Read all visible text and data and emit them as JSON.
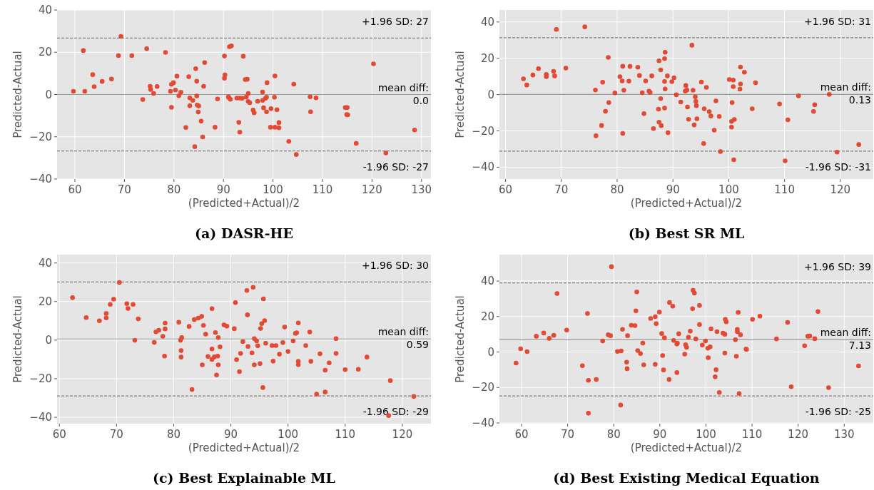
{
  "chart_data": [
    {
      "type": "scatter",
      "title": "(a) DASR-HE",
      "xlabel": "(Predicted+Actual)/2",
      "ylabel": "Predicted-Actual",
      "xlim": [
        56.4,
        131.9
      ],
      "ylim": [
        -40,
        40
      ],
      "xticks": [
        60,
        70,
        80,
        90,
        100,
        110,
        120,
        130
      ],
      "yticks": [
        -40,
        -20,
        0,
        20,
        40
      ],
      "grid": true,
      "marker": "circle",
      "color": "#e24a33",
      "x": [
        59.7,
        61.7,
        62.0,
        63.6,
        63.9,
        65.5,
        67.4,
        68.8,
        69.3,
        71.5,
        73.7,
        74.5,
        75.2,
        75.3,
        75.9,
        76.6,
        78.3,
        79.3,
        79.5,
        79.5,
        79.9,
        80.3,
        80.6,
        81.0,
        81.4,
        82.4,
        83.0,
        83.2,
        83.2,
        83.8,
        84.4,
        84.6,
        84.6,
        84.7,
        85.0,
        84.9,
        85.5,
        85.8,
        86.0,
        84.2,
        86.2,
        88.3,
        88.8,
        90.2,
        90.2,
        90.3,
        91.0,
        91.2,
        91.6,
        91.1,
        91.4,
        92.7,
        93.1,
        93.3,
        93.3,
        93.8,
        94.0,
        94.4,
        94.8,
        94.6,
        95.0,
        95.0,
        95.3,
        96.0,
        96.2,
        96.9,
        97.9,
        97.9,
        98.1,
        98.5,
        98.7,
        98.7,
        98.8,
        99.6,
        99.5,
        100.3,
        100.4,
        100.4,
        100.8,
        101.2,
        101.2,
        103.2,
        104.2,
        104.7,
        107.5,
        107.6,
        108.7,
        114.6,
        115.0,
        114.9,
        115.1,
        116.8,
        120.3,
        122.8,
        128.6
      ],
      "values": [
        1.5,
        20.8,
        1.5,
        9.4,
        3.7,
        6.2,
        7.3,
        18.4,
        27.5,
        18.4,
        -2.4,
        21.7,
        3.9,
        2.4,
        0.5,
        3.8,
        19.9,
        1.5,
        4.8,
        -6.1,
        5.6,
        2.1,
        8.7,
        -0.6,
        1.1,
        -15.6,
        8.4,
        -1.6,
        -5.3,
        -2.8,
        12.2,
        -0.7,
        6.3,
        -5.0,
        -5.4,
        -8.3,
        -12.6,
        -20.1,
        3.9,
        -24.7,
        15.1,
        -15.5,
        -2.1,
        18.2,
        7.7,
        9.3,
        -1.1,
        22.6,
        23.0,
        -1.5,
        -2.3,
        -1.7,
        -13.2,
        -1.7,
        -17.8,
        -1.8,
        18.1,
        7.1,
        7.2,
        -1.2,
        0.5,
        -3.3,
        -3.9,
        -7.4,
        -8.7,
        -3.2,
        1.2,
        -2.8,
        -6.3,
        -1.8,
        -1.3,
        -8.2,
        5.6,
        -6.7,
        -15.5,
        -1.3,
        8.8,
        -15.5,
        -7.2,
        -13.3,
        -15.8,
        -22.2,
        4.9,
        -28.4,
        -1.1,
        -8.2,
        -1.6,
        -6.2,
        -6.2,
        -9.5,
        -9.6,
        -23.1,
        14.5,
        -27.7,
        -16.8
      ],
      "ref_lines": [
        {
          "axis": "y",
          "value": 26.7,
          "label": "+1.96 SD: 27",
          "color": "#808080",
          "line_style": "dashed"
        },
        {
          "axis": "y",
          "value": 0.0,
          "label": "mean diff:\n0.0",
          "color": "#999999",
          "line_style": "solid"
        },
        {
          "axis": "y",
          "value": -26.7,
          "label": "-1.96 SD: -27",
          "color": "#808080",
          "line_style": "dashed"
        }
      ]
    },
    {
      "type": "scatter",
      "title": "(b) Best SR ML",
      "xlabel": "(Predicted+Actual)/2",
      "ylabel": "Predicted-Actual",
      "xlim": [
        58.9,
        125.9
      ],
      "ylim": [
        -46.5,
        46.6
      ],
      "xticks": [
        60,
        70,
        80,
        90,
        100,
        110,
        120
      ],
      "yticks": [
        -40,
        -20,
        0,
        20,
        40
      ],
      "grid": true,
      "marker": "circle",
      "color": "#e24a33",
      "x": [
        63.2,
        63.8,
        64.9,
        65.9,
        67.3,
        67.3,
        68.6,
        68.8,
        69.1,
        70.8,
        74.2,
        76.1,
        76.2,
        77.2,
        77.4,
        77.9,
        78.4,
        78.5,
        79.6,
        80.5,
        80.9,
        81.0,
        81.0,
        81.2,
        82.1,
        82.3,
        83.7,
        84.0,
        84.5,
        84.8,
        85.1,
        85.7,
        85.9,
        86.2,
        86.5,
        87.4,
        87.5,
        87.5,
        87.8,
        87.8,
        87.9,
        88.5,
        88.6,
        88.5,
        88.5,
        88.6,
        89.0,
        89.1,
        89.8,
        90.2,
        90.6,
        91.4,
        92.2,
        92.3,
        92.5,
        92.6,
        92.8,
        93.4,
        93.6,
        93.8,
        94.0,
        94.1,
        94.2,
        94.3,
        95.1,
        95.6,
        95.5,
        96.0,
        96.5,
        96.8,
        97.4,
        97.7,
        98.3,
        98.5,
        100.1,
        100.5,
        100.5,
        100.6,
        100.8,
        100.8,
        101.0,
        100.9,
        102.0,
        102.1,
        102.1,
        102.8,
        104.2,
        104.8,
        109.1,
        110.1,
        110.6,
        112.5,
        115.2,
        115.4,
        118.0,
        119.4,
        123.3
      ],
      "values": [
        8.7,
        5.3,
        10.8,
        14.3,
        11.1,
        9.9,
        12.8,
        10.3,
        35.9,
        14.6,
        37.3,
        2.5,
        -22.7,
        -17.0,
        6.8,
        -9.2,
        20.5,
        -4.4,
        0.9,
        9.9,
        7.5,
        15.6,
        -21.4,
        2.4,
        7.4,
        15.5,
        15.1,
        10.5,
        1.0,
        -10.5,
        7.5,
        1.9,
        1.2,
        10.3,
        -18.7,
        -8.0,
        -15.2,
        18.6,
        -2.2,
        13.6,
        -17.1,
        19.8,
        23.3,
        -7.4,
        7.2,
        3.1,
        10.3,
        -21.0,
        7.1,
        9.3,
        -0.1,
        -4.1,
        1.9,
        5.0,
        2.5,
        -6.8,
        -13.6,
        27.2,
        2.4,
        -16.7,
        -1.2,
        -3.7,
        -6.1,
        -13.3,
        6.9,
        -7.8,
        -27.0,
        4.0,
        -9.4,
        -11.8,
        -19.6,
        -3.5,
        -12.0,
        -31.4,
        8.3,
        -14.8,
        -17.9,
        -4.4,
        8.0,
        4.4,
        -13.7,
        -35.9,
        3.0,
        5.8,
        15.2,
        12.3,
        -7.8,
        6.5,
        -5.2,
        -36.5,
        -13.9,
        -0.7,
        -9.3,
        -5.6,
        0.1,
        -31.7,
        -27.5
      ],
      "ref_lines": [
        {
          "axis": "y",
          "value": 31.3,
          "label": "+1.96 SD: 31",
          "color": "#808080",
          "line_style": "dashed"
        },
        {
          "axis": "y",
          "value": 0.13,
          "label": "mean diff:\n0.13",
          "color": "#999999",
          "line_style": "solid"
        },
        {
          "axis": "y",
          "value": -31.1,
          "label": "-1.96 SD: -31",
          "color": "#808080",
          "line_style": "dashed"
        }
      ]
    },
    {
      "type": "scatter",
      "title": "(c) Best Explainable ML",
      "xlabel": "(Predicted+Actual)/2",
      "ylabel": "Predicted-Actual",
      "xlim": [
        59.6,
        125.0
      ],
      "ylim": [
        -43.3,
        44.3
      ],
      "xticks": [
        60,
        70,
        80,
        90,
        100,
        110,
        120
      ],
      "yticks": [
        -40,
        -20,
        0,
        20,
        40
      ],
      "grid": true,
      "marker": "circle",
      "color": "#e24a33",
      "x": [
        62.3,
        64.7,
        67.0,
        68.2,
        68.2,
        68.9,
        69.5,
        70.5,
        71.8,
        72.0,
        72.9,
        73.2,
        73.8,
        76.6,
        76.9,
        77.4,
        78.1,
        78.4,
        78.5,
        78.5,
        80.9,
        81.2,
        81.3,
        81.3,
        81.4,
        82.7,
        83.2,
        83.6,
        84.3,
        84.9,
        85.0,
        85.2,
        85.6,
        86.0,
        86.7,
        86.7,
        86.7,
        87.1,
        87.3,
        87.5,
        87.7,
        87.8,
        87.8,
        88.1,
        88.8,
        89.3,
        90.6,
        90.8,
        91.0,
        91.5,
        91.7,
        92.1,
        92.8,
        92.9,
        93.0,
        93.7,
        93.9,
        94.1,
        94.1,
        94.5,
        94.7,
        95.1,
        95.2,
        95.4,
        95.6,
        95.7,
        95.9,
        96.1,
        97.2,
        97.4,
        97.9,
        98.5,
        99.1,
        99.4,
        100.0,
        100.9,
        101.3,
        101.5,
        101.8,
        101.8,
        101.8,
        103.1,
        103.8,
        104.0,
        105.0,
        105.6,
        106.5,
        106.5,
        107.2,
        108.4,
        108.4,
        110.0,
        112.3,
        113.8,
        117.6,
        117.9,
        122.0
      ],
      "values": [
        22.0,
        11.7,
        10.0,
        13.8,
        11.5,
        18.5,
        21.2,
        29.9,
        18.9,
        16.4,
        18.5,
        -0.1,
        11.0,
        -1.2,
        4.3,
        5.1,
        2.0,
        -8.3,
        8.8,
        5.8,
        9.3,
        -0.1,
        -5.4,
        -8.8,
        1.3,
        7.1,
        -25.6,
        10.6,
        11.4,
        12.3,
        -12.8,
        7.6,
        3.1,
        -8.5,
        -10.0,
        -4.6,
        16.3,
        -8.7,
        3.9,
        -18.1,
        -8.3,
        1.3,
        -12.8,
        -3.5,
        7.9,
        7.2,
        5.9,
        19.4,
        -10.1,
        -16.3,
        -6.9,
        -0.8,
        25.7,
        13.1,
        -3.3,
        -6.6,
        27.4,
        0.8,
        -12.8,
        -0.4,
        -2.9,
        -12.2,
        6.0,
        8.5,
        -24.6,
        21.4,
        10.1,
        -1.6,
        -2.8,
        -10.9,
        -2.8,
        -7.3,
        -1.3,
        6.8,
        -5.9,
        -0.4,
        3.5,
        3.8,
        8.9,
        -11.0,
        -12.7,
        -2.8,
        4.2,
        -11.0,
        -28.0,
        -7.1,
        -26.9,
        -15.6,
        -11.8,
        -6.9,
        0.8,
        -15.3,
        -15.1,
        -8.8,
        -39.1,
        -21.0,
        -29.2
      ],
      "ref_lines": [
        {
          "axis": "y",
          "value": 30.1,
          "label": "+1.96 SD: 30",
          "color": "#808080",
          "line_style": "dashed"
        },
        {
          "axis": "y",
          "value": 0.59,
          "label": "mean diff:\n0.59",
          "color": "#999999",
          "line_style": "solid"
        },
        {
          "axis": "y",
          "value": -28.9,
          "label": "-1.96 SD: -29",
          "color": "#808080",
          "line_style": "dashed"
        }
      ]
    },
    {
      "type": "scatter",
      "title": "(d) Best Existing Medical Equation",
      "xlabel": "(Predicted+Actual)/2",
      "ylabel": "Predicted-Actual",
      "xlim": [
        55.2,
        136.3
      ],
      "ylim": [
        -40.4,
        54.9
      ],
      "xticks": [
        60,
        70,
        80,
        90,
        100,
        110,
        120,
        130
      ],
      "yticks": [
        -40,
        -20,
        0,
        20,
        40
      ],
      "grid": true,
      "marker": "circle",
      "color": "#e24a33",
      "x": [
        58.8,
        59.8,
        61.2,
        63.2,
        64.8,
        66.0,
        67.0,
        67.7,
        69.8,
        73.2,
        74.3,
        74.5,
        74.5,
        76.2,
        77.6,
        78.8,
        79.3,
        79.5,
        80.8,
        81.6,
        81.5,
        81.9,
        82.8,
        82.9,
        83.0,
        83.8,
        84.6,
        84.8,
        85.0,
        85.2,
        85.8,
        86.3,
        86.5,
        88.0,
        89.0,
        89.2,
        89.0,
        89.9,
        90.4,
        90.6,
        90.8,
        91.0,
        92.0,
        92.1,
        92.8,
        93.0,
        93.7,
        93.8,
        93.7,
        94.1,
        95.4,
        95.6,
        95.8,
        96.2,
        96.6,
        97.1,
        97.2,
        97.5,
        97.8,
        98.6,
        98.6,
        99.2,
        99.9,
        100.4,
        100.5,
        100.9,
        101.1,
        102.2,
        102.0,
        102.4,
        102.9,
        103.7,
        104.1,
        104.1,
        104.2,
        104.4,
        106.4,
        106.6,
        106.8,
        106.8,
        107.0,
        107.2,
        107.5,
        108.7,
        108.8,
        110.1,
        111.7,
        115.3,
        117.7,
        118.5,
        121.4,
        122.1,
        122.5,
        123.6,
        124.3,
        126.6,
        133.1
      ],
      "values": [
        -6.2,
        1.8,
        0.2,
        8.9,
        10.7,
        7.7,
        9.4,
        33.0,
        12.4,
        -7.7,
        21.7,
        -16.0,
        -34.5,
        -15.5,
        6.2,
        9.7,
        9.2,
        48.1,
        0.3,
        0.6,
        -29.9,
        12.8,
        -5.7,
        -9.4,
        9.2,
        15.1,
        14.9,
        23.2,
        33.9,
        0.8,
        -0.9,
        5.0,
        -7.2,
        18.9,
        19.9,
        16.0,
        -6.9,
        22.5,
        10.4,
        -2.0,
        -10.1,
        8.0,
        -15.5,
        27.9,
        25.8,
        6.5,
        4.5,
        5.0,
        -11.6,
        10.3,
        -1.2,
        4.1,
        2.6,
        8.3,
        11.8,
        24.4,
        34.8,
        33.2,
        7.4,
        15.5,
        26.2,
        3.9,
        6.2,
        2.1,
        -3.2,
        2.9,
        13.1,
        -10.0,
        -14.0,
        11.5,
        -22.8,
        10.6,
        10.0,
        -0.6,
        18.4,
        17.0,
        6.9,
        -2.4,
        11.5,
        12.8,
        22.3,
        -23.4,
        9.7,
        1.7,
        1.4,
        18.4,
        20.2,
        7.4,
        16.7,
        -19.6,
        3.5,
        8.9,
        9.0,
        7.5,
        22.8,
        -20.1,
        -7.8
      ],
      "ref_lines": [
        {
          "axis": "y",
          "value": 39.0,
          "label": "+1.96 SD: 39",
          "color": "#808080",
          "line_style": "dashed"
        },
        {
          "axis": "y",
          "value": 7.13,
          "label": "mean diff:\n7.13",
          "color": "#999999",
          "line_style": "solid"
        },
        {
          "axis": "y",
          "value": -24.8,
          "label": "-1.96 SD: -25",
          "color": "#808080",
          "line_style": "dashed"
        }
      ]
    }
  ]
}
